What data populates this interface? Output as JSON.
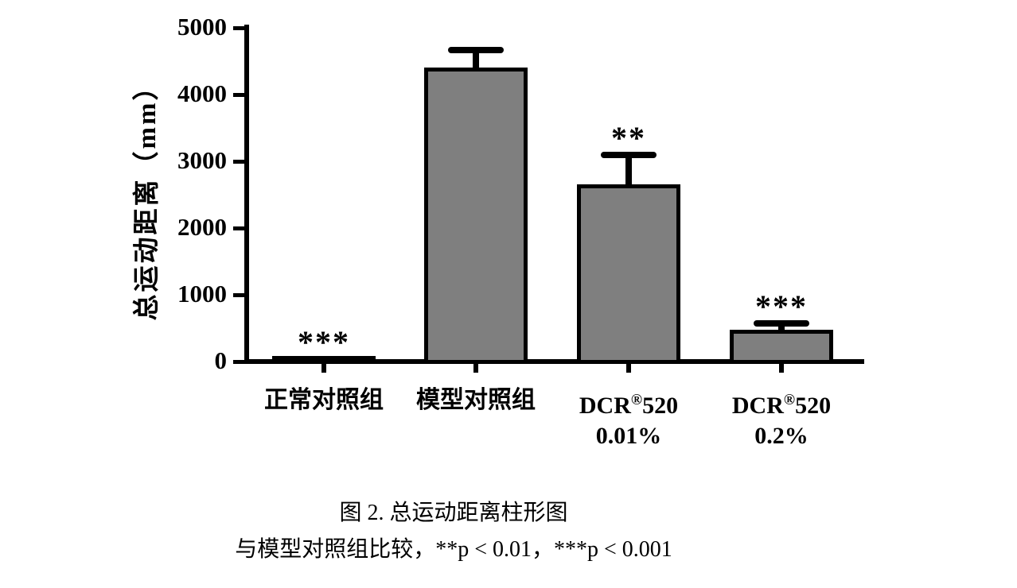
{
  "chart_data": {
    "type": "bar",
    "title": "图 2. 总运动距离柱形图",
    "ylabel": "总运动距离（mm）",
    "xlabel": "",
    "categories": [
      "正常对照组",
      "模型对照组",
      "DCR®520 0.01%",
      "DCR®520 0.2%"
    ],
    "values": [
      50,
      4400,
      2650,
      480
    ],
    "errors_upper": [
      0,
      270,
      450,
      90
    ],
    "significance": [
      "***",
      "",
      "**",
      "***"
    ],
    "yticks": [
      0,
      1000,
      2000,
      3000,
      4000,
      5000
    ],
    "ylim": [
      0,
      5000
    ],
    "grid": false,
    "legend": "none",
    "bar_color": "#7f7f7f",
    "bar_border_color": "#000000",
    "axis_color": "#000000"
  },
  "xaxis_labels": [
    {
      "text": "正常对照组"
    },
    {
      "text": "模型对照组"
    },
    {
      "pre": "DCR",
      "sup": "®",
      "post": "520",
      "line2": "0.01%"
    },
    {
      "pre": "DCR",
      "sup": "®",
      "post": "520",
      "line2": "0.2%"
    }
  ],
  "caption": {
    "line1": "图 2. 总运动距离柱形图",
    "line2": "与模型对照组比较，**p < 0.01，***p < 0.001"
  }
}
